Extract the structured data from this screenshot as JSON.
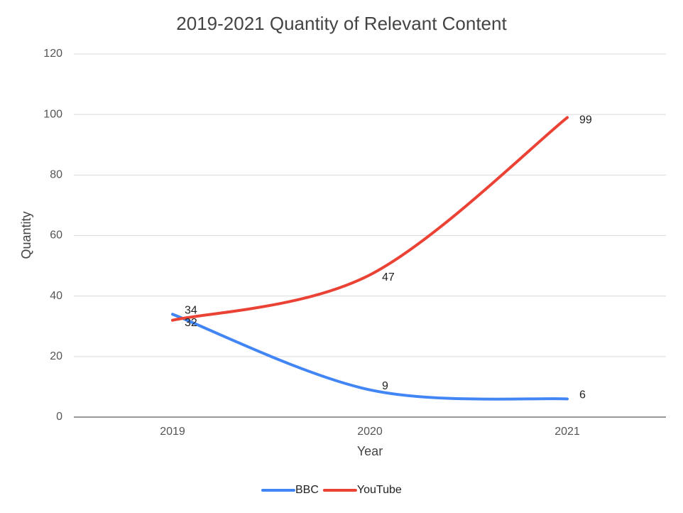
{
  "chart_data": {
    "type": "line",
    "title": "2019-2021 Quantity of Relevant Content",
    "x_label": "Year",
    "y_label": "Quantity",
    "categories": [
      "2019",
      "2020",
      "2021"
    ],
    "series": [
      {
        "name": "BBC",
        "color": "#4285f4",
        "values": [
          34,
          9,
          6
        ]
      },
      {
        "name": "YouTube",
        "color": "#ea4335",
        "values": [
          32,
          47,
          99
        ]
      }
    ],
    "ylim": [
      0,
      120
    ],
    "yticks": [
      0,
      20,
      40,
      60,
      80,
      100,
      120
    ],
    "grid": true,
    "smooth": true,
    "data_labels": true,
    "legend": "bottom"
  }
}
